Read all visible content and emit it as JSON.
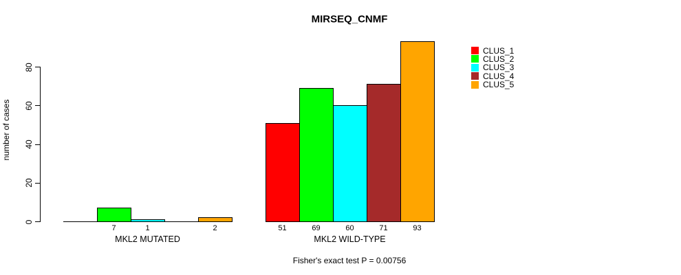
{
  "chart_data": {
    "type": "bar",
    "title": "MIRSEQ_CNMF",
    "ylabel": "number of cases",
    "xlabel": "",
    "annotation": "Fisher's exact test P = 0.00756",
    "grid": false,
    "legend_position": "right",
    "yticks": [
      0,
      20,
      40,
      60,
      80
    ],
    "ylim": [
      0,
      93
    ],
    "categories": [
      "MKL2 MUTATED",
      "MKL2 WILD-TYPE"
    ],
    "series": [
      {
        "name": "CLUS_1",
        "color": "#ff0000",
        "values": [
          0,
          51
        ]
      },
      {
        "name": "CLUS_2",
        "color": "#00ff00",
        "values": [
          7,
          69
        ]
      },
      {
        "name": "CLUS_3",
        "color": "#00ffff",
        "values": [
          1,
          60
        ]
      },
      {
        "name": "CLUS_4",
        "color": "#a52a2a",
        "values": [
          0,
          71
        ]
      },
      {
        "name": "CLUS_5",
        "color": "#ffa500",
        "values": [
          2,
          93
        ]
      }
    ],
    "bar_value_labels": [
      [
        "",
        "7",
        "1",
        "",
        "2"
      ],
      [
        "51",
        "69",
        "60",
        "71",
        "93"
      ]
    ],
    "legend": [
      {
        "label": "CLUS_1",
        "color": "#ff0000"
      },
      {
        "label": "CLUS_2",
        "color": "#00ff00"
      },
      {
        "label": "CLUS_3",
        "color": "#00ffff"
      },
      {
        "label": "CLUS_4",
        "color": "#a52a2a"
      },
      {
        "label": "CLUS_5",
        "color": "#ffa500"
      }
    ]
  }
}
